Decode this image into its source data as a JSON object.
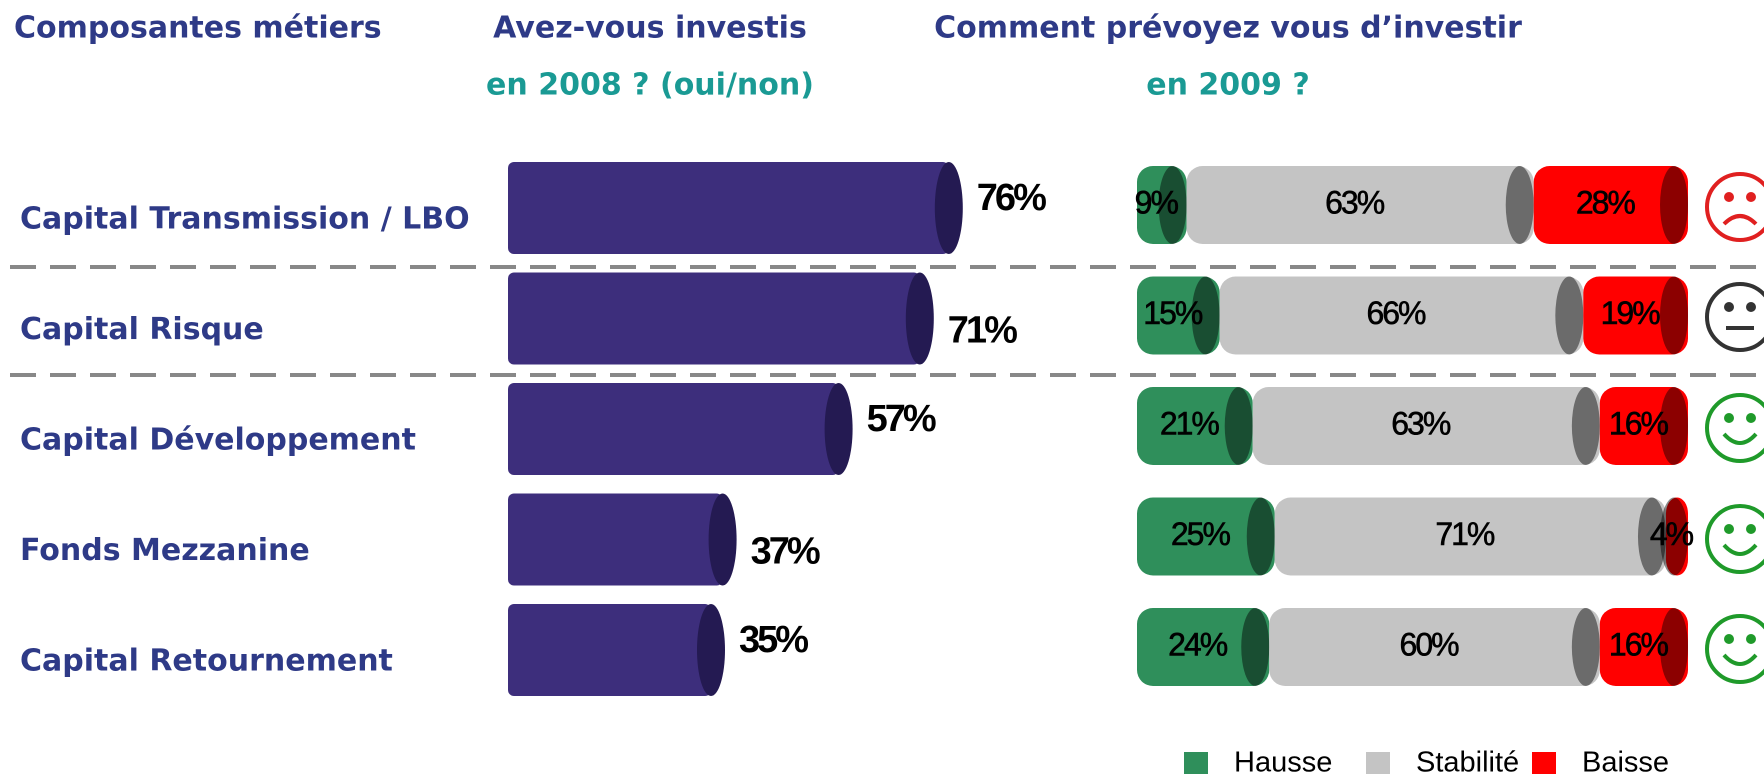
{
  "header": {
    "left": "Composantes métiers"
  },
  "chart_data": [
    {
      "type": "bar",
      "title": "Avez-vous investis",
      "subtitle": "en 2008 ? (oui/non)",
      "categories": [
        "Capital Transmission / LBO",
        "Capital Risque",
        "Capital Développement",
        "Fonds Mezzanine",
        "Capital Retournement"
      ],
      "values": [
        76,
        71,
        57,
        37,
        35
      ],
      "value_labels": [
        "76%",
        "71%",
        "57%",
        "37%",
        "35%"
      ],
      "color": "#3d2e7c"
    },
    {
      "type": "stacked_bar",
      "title": "Comment prévoyez vous d’investir",
      "subtitle": "en 2009 ?",
      "series": [
        {
          "name": "Hausse",
          "color": "#2f8f5b",
          "values": [
            9,
            15,
            21,
            25,
            24
          ],
          "value_labels": [
            "9%",
            "15%",
            "21%",
            "25%",
            "24%"
          ]
        },
        {
          "name": "Stabilité",
          "color": "#c4c4c4",
          "values": [
            63,
            66,
            63,
            71,
            60
          ],
          "value_labels": [
            "63%",
            "66%",
            "63%",
            "71%",
            "60%"
          ]
        },
        {
          "name": "Baisse",
          "color": "#ff0000",
          "values": [
            28,
            19,
            16,
            4,
            16
          ],
          "value_labels": [
            "28%",
            "19%",
            "16%",
            "4%",
            "16%"
          ]
        }
      ]
    }
  ]
}
